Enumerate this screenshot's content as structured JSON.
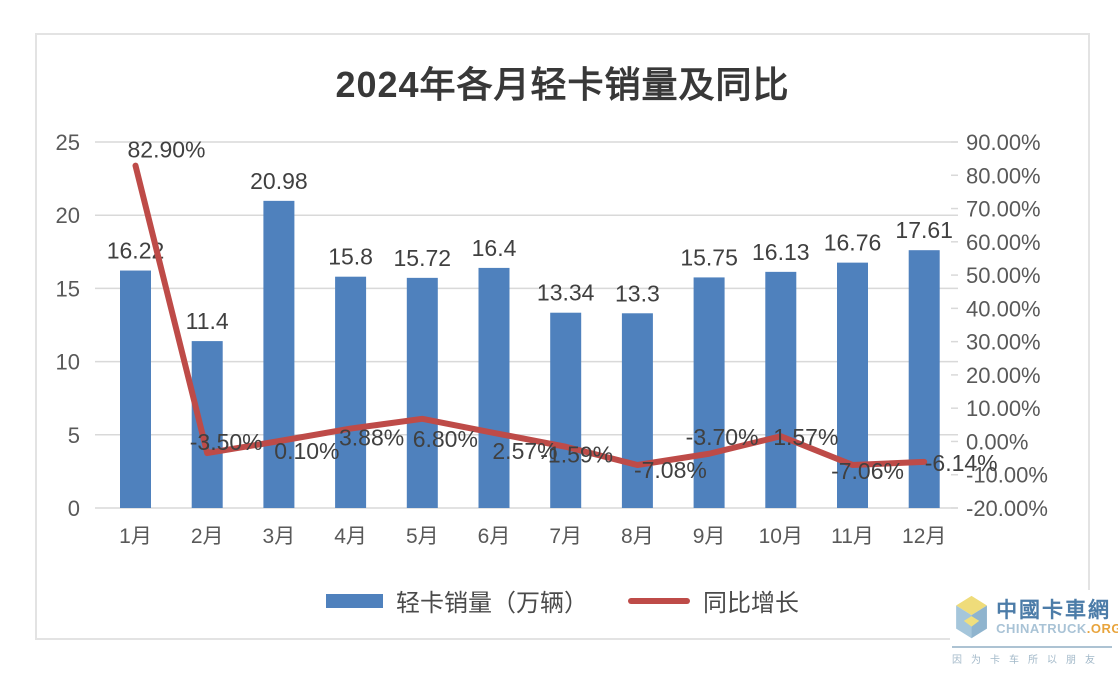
{
  "chart_data": {
    "type": "bar+line",
    "title": "2024年各月轻卡销量及同比",
    "categories": [
      "1月",
      "2月",
      "3月",
      "4月",
      "5月",
      "6月",
      "7月",
      "8月",
      "9月",
      "10月",
      "11月",
      "12月"
    ],
    "series": [
      {
        "name": "轻卡销量（万辆）",
        "type": "bar",
        "axis": "left",
        "color": "#4F81BD",
        "values": [
          16.22,
          11.4,
          20.98,
          15.8,
          15.72,
          16.4,
          13.34,
          13.3,
          15.75,
          16.13,
          16.76,
          17.61
        ],
        "labels": [
          "16.22",
          "11.4",
          "20.98",
          "15.8",
          "15.72",
          "16.4",
          "13.34",
          "13.3",
          "15.75",
          "16.13",
          "16.76",
          "17.61"
        ]
      },
      {
        "name": "同比增长",
        "type": "line",
        "axis": "right",
        "color": "#BE4B48",
        "values": [
          82.9,
          -3.5,
          0.1,
          3.88,
          6.8,
          2.57,
          -1.59,
          -7.08,
          -3.7,
          1.57,
          -7.06,
          -6.14
        ],
        "labels": [
          "82.90%",
          "-3.50%",
          "0.10%",
          "3.88%",
          "6.80%",
          "2.57%",
          "-1.59%",
          "-7.08%",
          "-3.70%",
          "1.57%",
          "-7.06%",
          "-6.14%"
        ]
      }
    ],
    "left_axis": {
      "min": 0,
      "max": 25,
      "ticks": [
        0,
        5,
        10,
        15,
        20,
        25
      ],
      "tick_labels": [
        "0",
        "5",
        "10",
        "15",
        "20",
        "25"
      ]
    },
    "right_axis": {
      "min": -20,
      "max": 90,
      "ticks": [
        90,
        80,
        70,
        60,
        50,
        40,
        30,
        20,
        10,
        0,
        -10,
        -20
      ],
      "tick_labels": [
        "90.00%",
        "80.00%",
        "70.00%",
        "60.00%",
        "50.00%",
        "40.00%",
        "30.00%",
        "20.00%",
        "10.00%",
        "0.00%",
        "-10.00%",
        "-20.00%"
      ]
    },
    "grid": true,
    "legend_position": "bottom"
  },
  "colors": {
    "background": "#FFFFFF",
    "frame_border": "#E3E3E3",
    "grid_line": "#D9D9D9",
    "axis_text": "#595959",
    "data_label_text": "#404040",
    "title_text": "#383838"
  },
  "logo": {
    "name_cn": "中國卡車網",
    "domain": "CHINATRUCK",
    "tld": ".ORG",
    "slogan": "因为卡车所以朋友"
  }
}
